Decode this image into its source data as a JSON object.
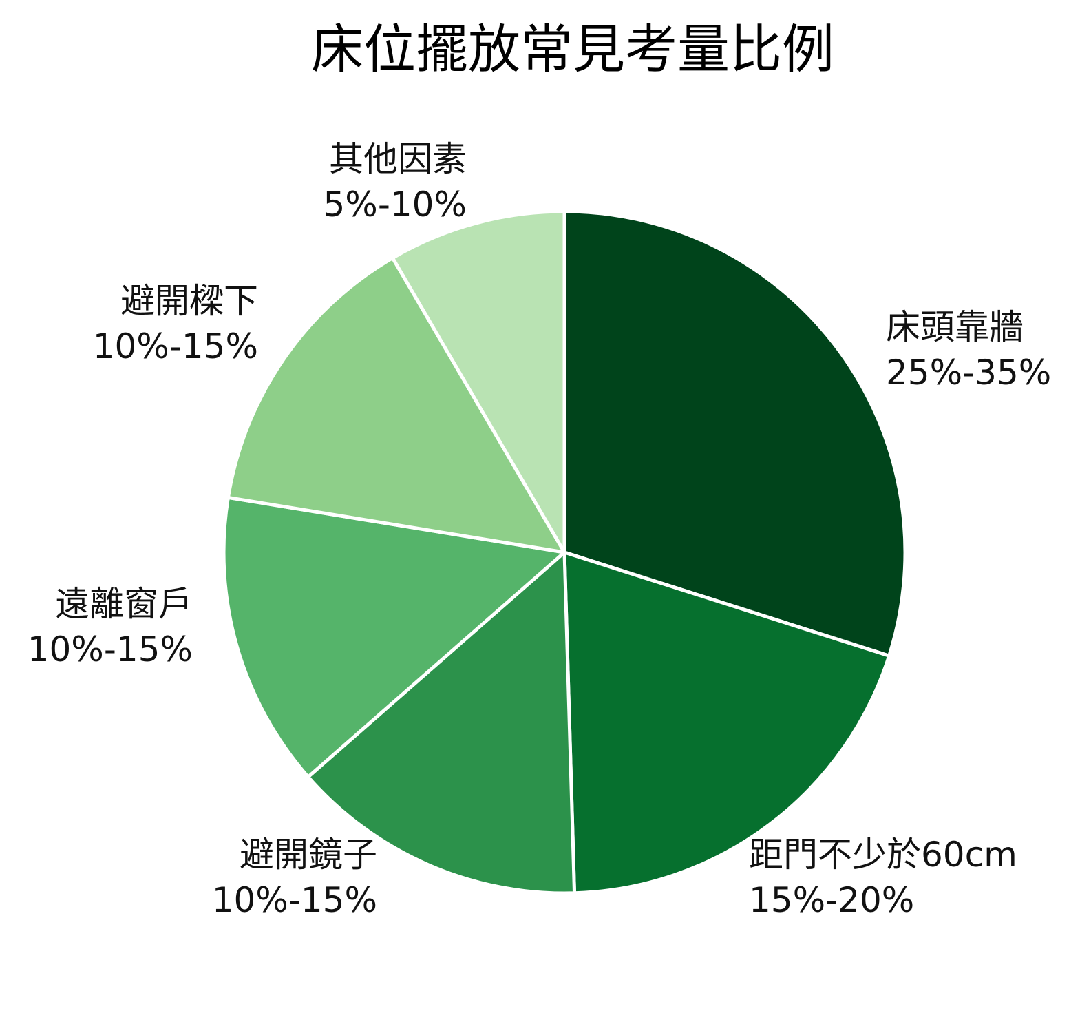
{
  "chart_data": {
    "type": "pie",
    "title": "床位擺放常見考量比例",
    "categories": [
      "床頭靠牆",
      "距門不少於60cm",
      "避開鏡子",
      "遠離窗戶",
      "避開樑下",
      "其他因素"
    ],
    "values": [
      32,
      21,
      15,
      15,
      15,
      9
    ],
    "range_labels": [
      "25%-35%",
      "15%-20%",
      "10%-15%",
      "10%-15%",
      "10%-15%",
      "5%-10%"
    ],
    "colors": [
      "#00441b",
      "#06702e",
      "#2c924b",
      "#55b46a",
      "#8ecf89",
      "#b9e3b3"
    ],
    "slice_border_color": "#ffffff",
    "start_angle_deg": 0,
    "direction": "clockwise",
    "legend": "none"
  }
}
